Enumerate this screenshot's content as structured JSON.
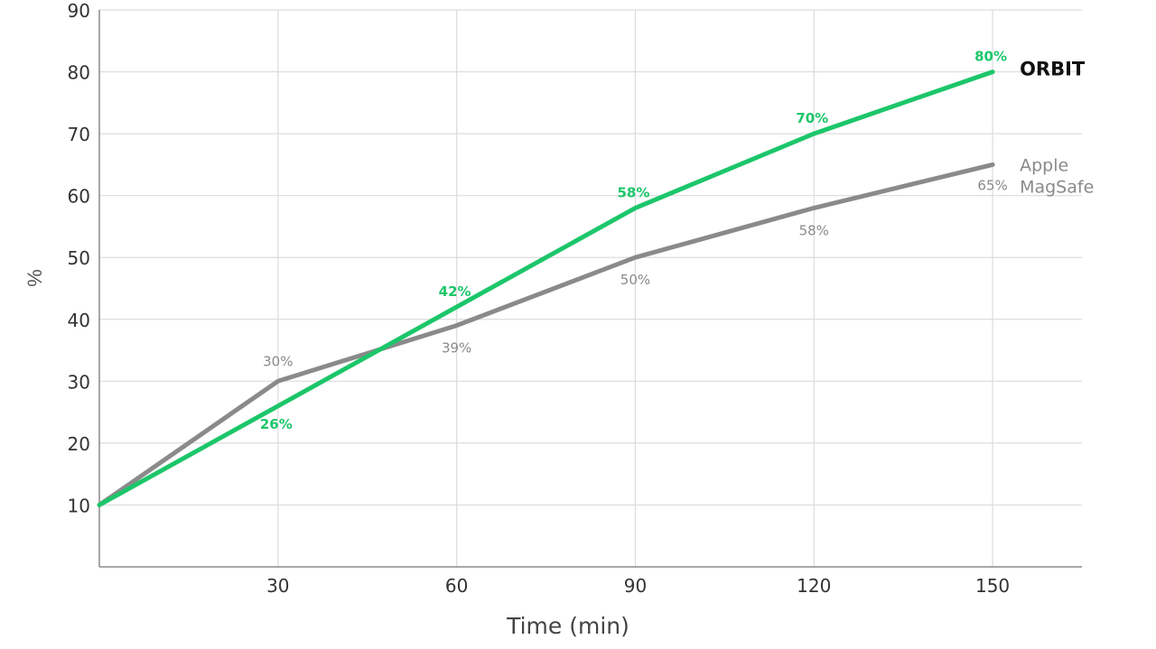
{
  "chart_data": {
    "type": "line",
    "title": "",
    "xlabel": "Time (min)",
    "ylabel": "%",
    "x": [
      0,
      30,
      60,
      90,
      120,
      150
    ],
    "xticks": [
      30,
      60,
      90,
      120,
      150
    ],
    "xtick_labels": [
      "30",
      "60",
      "90",
      "120",
      "150"
    ],
    "xlim": [
      0,
      165
    ],
    "ylim": [
      0,
      90
    ],
    "yticks": [
      10,
      20,
      30,
      40,
      50,
      60,
      70,
      80,
      90
    ],
    "ytick_labels": [
      "10",
      "20",
      "30",
      "40",
      "50",
      "60",
      "70",
      "80",
      "90"
    ],
    "grid": true,
    "series": [
      {
        "name": "ORBIT",
        "color": "#1cc66a",
        "values": [
          10,
          26,
          42,
          58,
          70,
          80
        ],
        "labels": [
          "",
          "26%",
          "42%",
          "58%",
          "70%",
          "80%"
        ]
      },
      {
        "name": "Apple MagSafe",
        "name_lines": [
          "Apple",
          "MagSafe"
        ],
        "color": "#8a8a8a",
        "values": [
          10,
          30,
          39,
          50,
          58,
          65
        ],
        "labels": [
          "",
          "30%",
          "39%",
          "50%",
          "58%",
          "65%"
        ]
      }
    ]
  }
}
